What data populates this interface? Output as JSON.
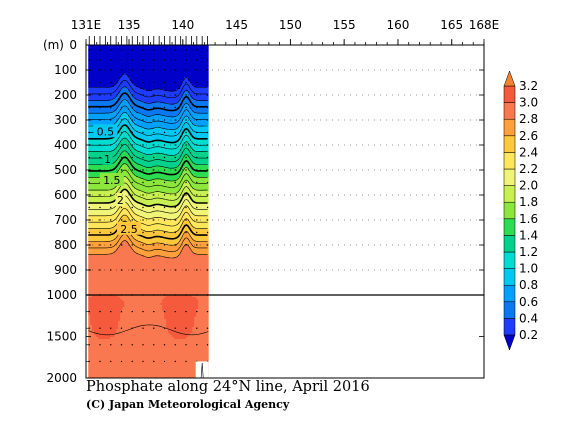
{
  "chart_data": {
    "type": "heatmap",
    "title": "Phosphate along 24°N line, April 2016",
    "credit": "(C) Japan Meteorological Agency",
    "ylabel": "(m)",
    "x_tick_labels": [
      "131E",
      "135",
      "140",
      "145",
      "150",
      "155",
      "160",
      "165",
      "168E"
    ],
    "x_ticks": [
      131,
      135,
      140,
      145,
      150,
      155,
      160,
      165,
      168
    ],
    "xlim": [
      131,
      168
    ],
    "y_tick_labels_upper": [
      "0",
      "100",
      "200",
      "300",
      "400",
      "500",
      "600",
      "700",
      "800",
      "900",
      "1000"
    ],
    "y_ticks_upper": [
      0,
      100,
      200,
      300,
      400,
      500,
      600,
      700,
      800,
      900,
      1000
    ],
    "y_tick_labels_lower": [
      "1500",
      "2000"
    ],
    "y_ticks_lower": [
      1500,
      2000
    ],
    "ylim": [
      0,
      2000
    ],
    "data_extent_lon": [
      131.2,
      142.4
    ],
    "stations_lon": [
      131.3,
      131.8,
      132.3,
      132.8,
      133.3,
      133.8,
      134.3,
      134.8,
      135.3,
      135.8,
      136.3,
      136.8,
      137.3,
      137.8,
      138.3,
      138.8,
      139.3,
      139.8,
      140.3,
      140.8,
      141.3,
      141.8,
      142.3
    ],
    "contour_labels": [
      {
        "text": "0.5",
        "lon": 132.8,
        "depth": 345
      },
      {
        "text": "1",
        "lon": 133.0,
        "depth": 455
      },
      {
        "text": "1.5",
        "lon": 133.4,
        "depth": 540
      },
      {
        "text": "2",
        "lon": 134.2,
        "depth": 620
      },
      {
        "text": "2.5",
        "lon": 135.0,
        "depth": 735
      }
    ],
    "colorbar": {
      "levels": [
        0.2,
        0.4,
        0.6,
        0.8,
        1.0,
        1.2,
        1.4,
        1.6,
        1.8,
        2.0,
        2.2,
        2.4,
        2.6,
        2.8,
        3.0,
        3.2
      ],
      "labels": [
        "0.2",
        "0.4",
        "0.6",
        "0.8",
        "1.0",
        "1.2",
        "1.4",
        "1.6",
        "1.8",
        "2.0",
        "2.2",
        "2.4",
        "2.6",
        "2.8",
        "3.0",
        "3.2"
      ],
      "colors": [
        "#1e3cff",
        "#0a78f0",
        "#00a0ff",
        "#00c8f0",
        "#00dcd2",
        "#00d28c",
        "#2ddc50",
        "#8ce63c",
        "#c8f050",
        "#f0f578",
        "#ffe65a",
        "#ffc83c",
        "#ffa03c",
        "#fa7850",
        "#f55a3c",
        "#e6463c",
        "#d73232"
      ],
      "under_color": "#0000c8",
      "over_color": "#f08232"
    },
    "gap": {
      "lon_start": 141.2,
      "lon_end": 142.4,
      "depth_start": 1800
    }
  }
}
